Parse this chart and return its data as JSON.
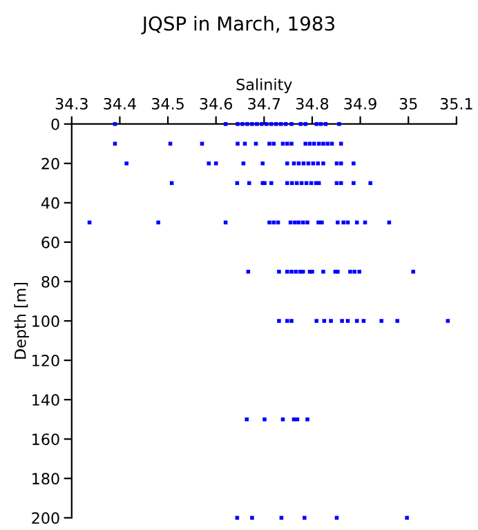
{
  "chart_data": {
    "type": "scatter",
    "title": "JQSP in March, 1983",
    "xlabel": "Salinity",
    "ylabel": "Depth [m]",
    "xlim": [
      34.3,
      35.1
    ],
    "xticks": [
      34.3,
      34.4,
      34.5,
      34.6,
      34.7,
      34.8,
      34.9,
      35,
      35.1
    ],
    "ylim": [
      200,
      0
    ],
    "yticks": [
      0,
      20,
      40,
      60,
      80,
      100,
      120,
      140,
      160,
      180,
      200
    ],
    "marker": "square",
    "grid": false,
    "series": [
      {
        "color": "#0000ff",
        "x": [
          34.39,
          34.62,
          34.645,
          34.655,
          34.665,
          34.675,
          34.685,
          34.695,
          34.705,
          34.715,
          34.725,
          34.735,
          34.745,
          34.757,
          34.776,
          34.786,
          34.809,
          34.818,
          34.828,
          34.856,
          34.39,
          34.505,
          34.571,
          34.645,
          34.66,
          34.683,
          34.711,
          34.72,
          34.739,
          34.748,
          34.757,
          34.786,
          34.795,
          34.804,
          34.814,
          34.823,
          34.832,
          34.841,
          34.86,
          34.414,
          34.585,
          34.6,
          34.657,
          34.697,
          34.748,
          34.762,
          34.772,
          34.782,
          34.792,
          34.802,
          34.812,
          34.823,
          34.851,
          34.86,
          34.886,
          34.508,
          34.644,
          34.669,
          34.697,
          34.701,
          34.715,
          34.748,
          34.758,
          34.768,
          34.778,
          34.788,
          34.798,
          34.808,
          34.814,
          34.851,
          34.86,
          34.886,
          34.921,
          34.337,
          34.48,
          34.62,
          34.711,
          34.72,
          34.729,
          34.755,
          34.764,
          34.772,
          34.781,
          34.79,
          34.813,
          34.82,
          34.853,
          34.865,
          34.874,
          34.893,
          34.91,
          34.96,
          34.667,
          34.731,
          34.748,
          34.757,
          34.766,
          34.775,
          34.781,
          34.795,
          34.8,
          34.823,
          34.848,
          34.853,
          34.879,
          34.888,
          34.898,
          35.01,
          34.731,
          34.748,
          34.757,
          34.809,
          34.825,
          34.839,
          34.862,
          34.874,
          34.893,
          34.907,
          34.944,
          34.977,
          35.082,
          34.664,
          34.701,
          34.739,
          34.762,
          34.769,
          34.79,
          34.644,
          34.675,
          34.736,
          34.784,
          34.851,
          34.997
        ],
        "values": [
          0,
          0,
          0,
          0,
          0,
          0,
          0,
          0,
          0,
          0,
          0,
          0,
          0,
          0,
          0,
          0,
          0,
          0,
          0,
          0,
          10,
          10,
          10,
          10,
          10,
          10,
          10,
          10,
          10,
          10,
          10,
          10,
          10,
          10,
          10,
          10,
          10,
          10,
          10,
          20,
          20,
          20,
          20,
          20,
          20,
          20,
          20,
          20,
          20,
          20,
          20,
          20,
          20,
          20,
          20,
          30,
          30,
          30,
          30,
          30,
          30,
          30,
          30,
          30,
          30,
          30,
          30,
          30,
          30,
          30,
          30,
          30,
          30,
          50,
          50,
          50,
          50,
          50,
          50,
          50,
          50,
          50,
          50,
          50,
          50,
          50,
          50,
          50,
          50,
          50,
          50,
          50,
          75,
          75,
          75,
          75,
          75,
          75,
          75,
          75,
          75,
          75,
          75,
          75,
          75,
          75,
          75,
          75,
          100,
          100,
          100,
          100,
          100,
          100,
          100,
          100,
          100,
          100,
          100,
          100,
          100,
          150,
          150,
          150,
          150,
          150,
          150,
          200,
          200,
          200,
          200,
          200,
          200
        ]
      }
    ]
  }
}
